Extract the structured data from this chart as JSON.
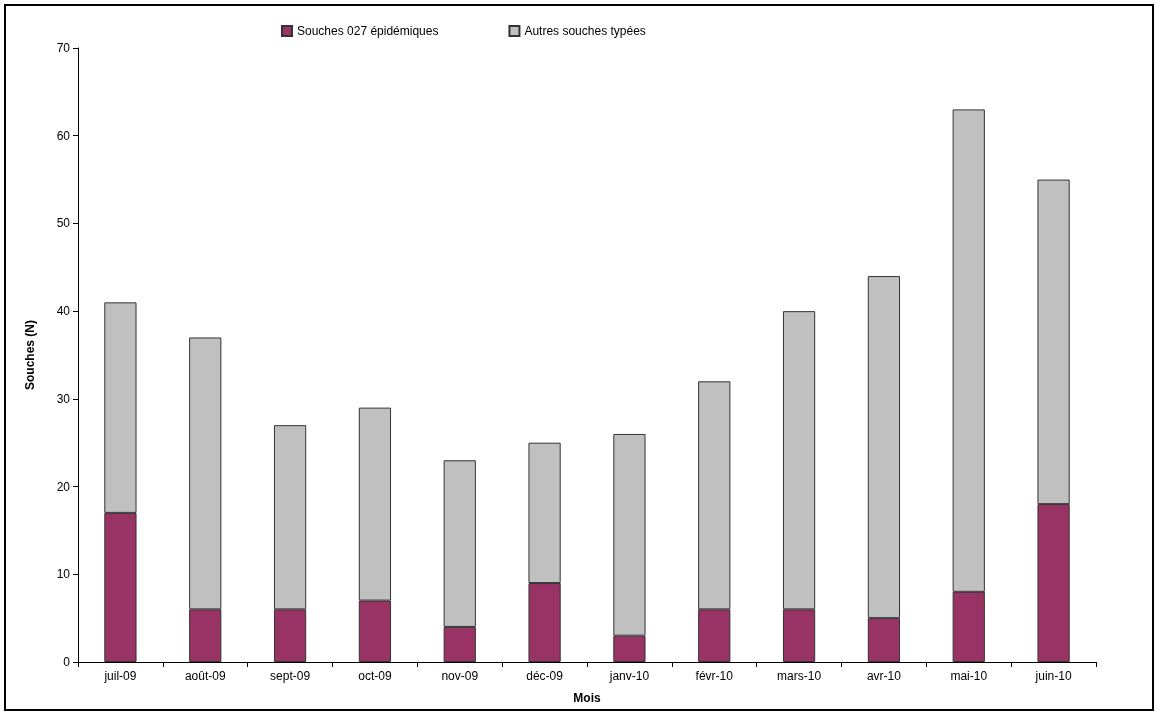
{
  "chart_data": {
    "type": "bar",
    "stacked": true,
    "xlabel": "Mois",
    "ylabel": "Souches (N)",
    "categories": [
      "juil-09",
      "août-09",
      "sept-09",
      "oct-09",
      "nov-09",
      "déc-09",
      "janv-10",
      "févr-10",
      "mars-10",
      "avr-10",
      "mai-10",
      "juin-10"
    ],
    "series": [
      {
        "name": "Souches 027 épidémiques",
        "color": "#993366",
        "values": [
          17,
          6,
          6,
          7,
          4,
          9,
          3,
          6,
          6,
          5,
          8,
          18
        ]
      },
      {
        "name": "Autres souches typées",
        "color": "#c0c0c0",
        "values": [
          24,
          31,
          21,
          22,
          19,
          16,
          23,
          26,
          34,
          39,
          55,
          37
        ]
      }
    ],
    "ylim": [
      0,
      70
    ],
    "yticks": [
      0,
      10,
      20,
      30,
      40,
      50,
      60,
      70
    ],
    "grid": false,
    "legend": "top"
  }
}
